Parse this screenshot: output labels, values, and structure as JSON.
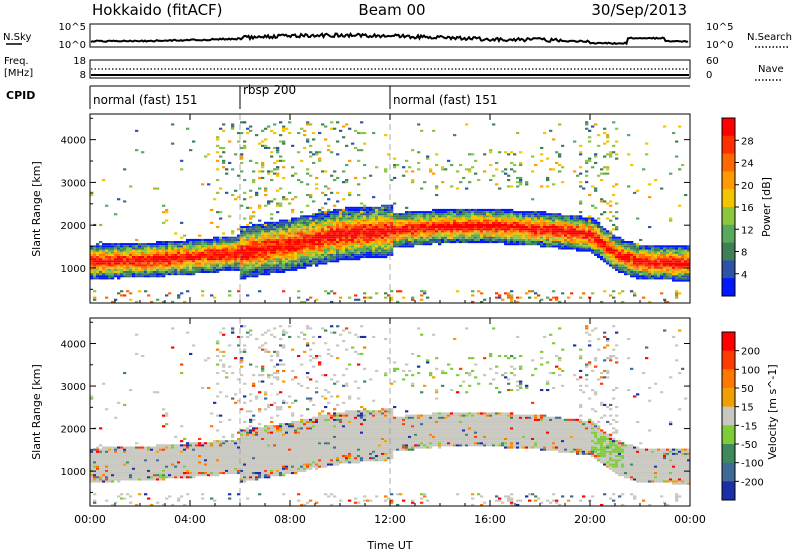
{
  "header": {
    "station": "Hokkaido (fitACF)",
    "beam": "Beam 00",
    "date": "30/Sep/2013"
  },
  "sky_panel": {
    "left_label": "N.Sky",
    "right_label": "N.Search",
    "left_ticks": [
      "10^5",
      "10^0"
    ],
    "right_ticks": [
      "10^5",
      "10^0"
    ]
  },
  "freq_panel": {
    "left_label_1": "Freq.",
    "left_label_2": "[MHz]",
    "right_label": "Nave",
    "left_ticks": [
      "18",
      "8"
    ],
    "right_ticks": [
      "60",
      "0"
    ]
  },
  "cpid": {
    "label": "CPID",
    "segments": [
      {
        "name": "normal (fast) 151",
        "start_hour": 0,
        "end_hour": 6
      },
      {
        "name": "rbsp 200",
        "start_hour": 6,
        "end_hour": 12
      },
      {
        "name": "normal (fast) 151",
        "start_hour": 12,
        "end_hour": 24
      }
    ]
  },
  "x_axis": {
    "label": "Time UT",
    "ticks": [
      "00:00",
      "04:00",
      "08:00",
      "12:00",
      "16:00",
      "20:00",
      "00:00"
    ],
    "range_hours": [
      0,
      24
    ]
  },
  "chart_data": [
    {
      "type": "heatmap",
      "quantity": "Power",
      "ylabel": "Slant Range [km]",
      "yticks": [
        1000,
        2000,
        3000,
        4000
      ],
      "ylim": [
        180,
        4600
      ],
      "colorbar_label": "Power [dB]",
      "colorbar_ticks": [
        "28",
        "24",
        "20",
        "16",
        "12",
        "8",
        "4"
      ],
      "colorbar_range": [
        0,
        32
      ],
      "colors": [
        "#0018ff",
        "#2e53a6",
        "#3f7f55",
        "#58a85e",
        "#8dc63f",
        "#f2c500",
        "#ff9a00",
        "#ff6a00",
        "#ff2f00",
        "#ff0000"
      ],
      "band_center_km": [
        [
          0,
          1120
        ],
        [
          2,
          1150
        ],
        [
          4,
          1230
        ],
        [
          6,
          1330
        ],
        [
          8,
          1520
        ],
        [
          10,
          1760
        ],
        [
          12,
          1850
        ],
        [
          14,
          1940
        ],
        [
          16,
          1960
        ],
        [
          18,
          1880
        ],
        [
          20,
          1750
        ],
        [
          21,
          1300
        ],
        [
          22,
          1100
        ],
        [
          24,
          1080
        ]
      ]
    },
    {
      "type": "heatmap",
      "quantity": "Velocity",
      "ylabel": "Slant Range [km]",
      "yticks": [
        1000,
        2000,
        3000,
        4000
      ],
      "ylim": [
        180,
        4600
      ],
      "colorbar_label": "Velocity [m s^-1]",
      "colorbar_ticks": [
        "200",
        "100",
        "50",
        "15",
        "-15",
        "-50",
        "-100",
        "-200"
      ],
      "colors": [
        "#1d2fa8",
        "#3f6a95",
        "#3e8a5b",
        "#7dcc3a",
        "#c8c8c0",
        "#f0a000",
        "#ff7800",
        "#ff3c00",
        "#ff0000"
      ]
    }
  ]
}
